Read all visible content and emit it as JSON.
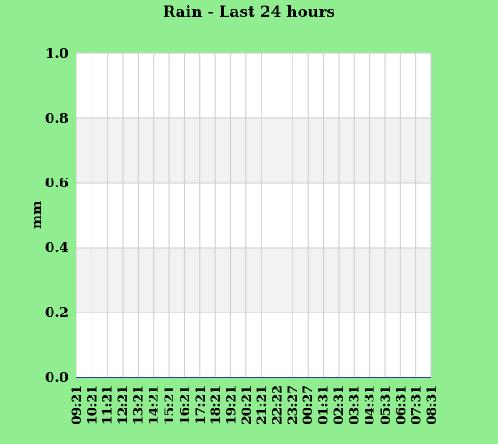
{
  "chart_data": {
    "type": "line",
    "title": "Rain - Last 24 hours",
    "xlabel": "",
    "ylabel": "mm",
    "ylim": [
      0,
      1.0
    ],
    "yticks": [
      "0.0",
      "0.2",
      "0.4",
      "0.6",
      "0.8",
      "1.0"
    ],
    "categories": [
      "09:21",
      "10:21",
      "11:21",
      "12:21",
      "13:21",
      "14:21",
      "15:21",
      "16:21",
      "17:21",
      "18:21",
      "19:21",
      "20:21",
      "21:21",
      "22:22",
      "23:27",
      "00:27",
      "01:31",
      "02:31",
      "03:31",
      "04:31",
      "05:31",
      "06:31",
      "07:31",
      "08:31"
    ],
    "series": [
      {
        "values": [
          0,
          0,
          0,
          0,
          0,
          0,
          0,
          0,
          0,
          0,
          0,
          0,
          0,
          0,
          0,
          0,
          0,
          0,
          0,
          0,
          0,
          0,
          0,
          0
        ]
      }
    ],
    "grid": true,
    "legend": "none"
  },
  "colors": {
    "background": "#90EE90",
    "plot_background": "#FFFFFF",
    "band_fill": "#F2F2F2",
    "grid": "#CCCCCC",
    "series_line": "#0000CC"
  }
}
